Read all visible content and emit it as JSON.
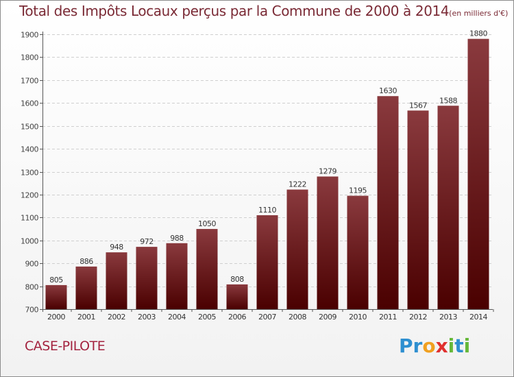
{
  "title": "Total des Impôts Locaux perçus par la Commune de 2000 à 2014",
  "unit": "(en milliers d'€)",
  "commune": "CASE-PILOTE",
  "logo": {
    "letters": [
      "P",
      "r",
      "o",
      "x",
      "i",
      "t",
      "i"
    ],
    "colors": [
      "#2e8fd0",
      "#2e8fd0",
      "#f0a020",
      "#e0302e",
      "#66b83a",
      "#2e8fd0",
      "#66b83a"
    ]
  },
  "colors": {
    "bar_top": "#8a3a3e",
    "bar_bottom": "#4a0000",
    "title": "#7a2a35",
    "commune": "#a3223e"
  },
  "chart_data": {
    "type": "bar",
    "title": "Total des Impôts Locaux perçus par la Commune de 2000 à 2014",
    "xlabel": "",
    "ylabel": "",
    "categories": [
      "2000",
      "2001",
      "2002",
      "2003",
      "2004",
      "2005",
      "2006",
      "2007",
      "2008",
      "2009",
      "2010",
      "2011",
      "2012",
      "2013",
      "2014"
    ],
    "values": [
      805,
      886,
      948,
      972,
      988,
      1050,
      808,
      1110,
      1222,
      1279,
      1195,
      1630,
      1567,
      1588,
      1880
    ],
    "ylim": [
      700,
      1900
    ],
    "yticks": [
      700,
      800,
      900,
      1000,
      1100,
      1200,
      1300,
      1400,
      1500,
      1600,
      1700,
      1800,
      1900
    ],
    "grid": true
  }
}
